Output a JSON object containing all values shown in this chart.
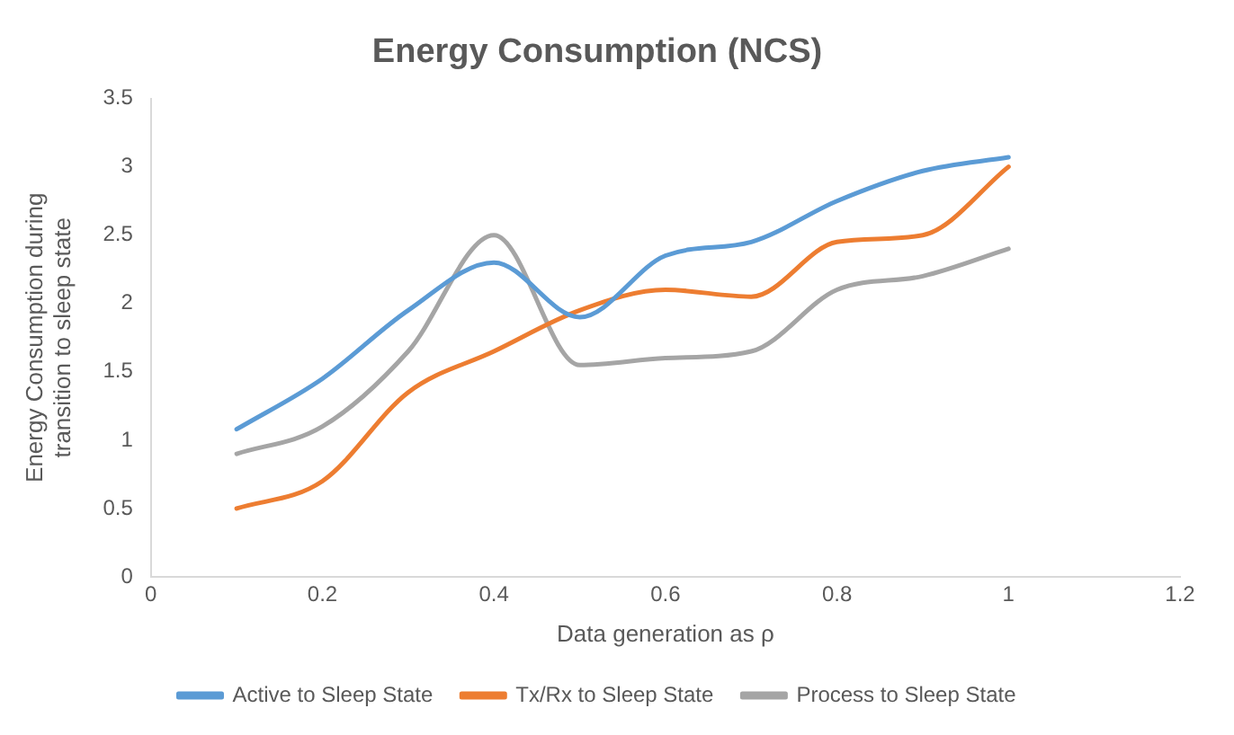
{
  "chart_data": {
    "type": "line",
    "title": "Energy Consumption (NCS)",
    "xlabel": "Data generation as ρ",
    "ylabel": "Energy Consumption during transition to sleep state",
    "x": [
      0.1,
      0.2,
      0.3,
      0.4,
      0.5,
      0.6,
      0.7,
      0.8,
      0.9,
      1.0
    ],
    "series": [
      {
        "name": "Active to Sleep State",
        "color": "#5b9bd5",
        "values": [
          1.08,
          1.45,
          1.95,
          2.3,
          1.9,
          2.35,
          2.45,
          2.75,
          2.97,
          3.07
        ]
      },
      {
        "name": "Tx/Rx to Sleep State",
        "color": "#ed7d31",
        "values": [
          0.5,
          0.7,
          1.35,
          1.65,
          1.95,
          2.1,
          2.05,
          2.45,
          2.5,
          3.0
        ]
      },
      {
        "name": "Process to Sleep State",
        "color": "#a5a5a5",
        "values": [
          0.9,
          1.1,
          1.65,
          2.5,
          1.55,
          1.6,
          1.65,
          2.1,
          2.2,
          2.4
        ]
      }
    ],
    "xlim": [
      0,
      1.2
    ],
    "xticks": [
      0,
      0.2,
      0.4,
      0.6,
      0.8,
      1,
      1.2
    ],
    "ylim": [
      0,
      3.5
    ],
    "yticks": [
      0,
      0.5,
      1,
      1.5,
      2,
      2.5,
      3,
      3.5
    ],
    "grid": false,
    "legend": "bottom",
    "marker": "none",
    "line_style": "solid"
  }
}
